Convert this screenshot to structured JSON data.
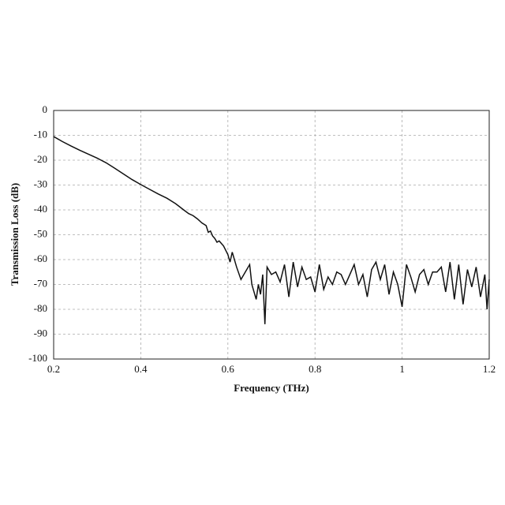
{
  "chart_data": {
    "type": "line",
    "x_label": "Frequency (THz)",
    "y_label": "Transmission Loss (dB)",
    "xlim": [
      0.2,
      1.2
    ],
    "xticks": [
      0.2,
      0.4,
      0.6,
      0.8,
      1,
      1.2
    ],
    "ylim": [
      -100,
      0
    ],
    "yticks": [
      0,
      -10,
      -20,
      -30,
      -40,
      -50,
      -60,
      -70,
      -80,
      -90,
      -100
    ],
    "grid": true,
    "color": "#111111",
    "x": [
      0.2,
      0.22,
      0.24,
      0.26,
      0.28,
      0.3,
      0.32,
      0.34,
      0.36,
      0.38,
      0.4,
      0.42,
      0.44,
      0.46,
      0.48,
      0.5,
      0.51,
      0.52,
      0.53,
      0.54,
      0.55,
      0.555,
      0.56,
      0.565,
      0.57,
      0.575,
      0.58,
      0.59,
      0.6,
      0.605,
      0.61,
      0.62,
      0.63,
      0.64,
      0.65,
      0.655,
      0.66,
      0.665,
      0.67,
      0.675,
      0.68,
      0.685,
      0.69,
      0.7,
      0.71,
      0.72,
      0.73,
      0.74,
      0.75,
      0.76,
      0.77,
      0.78,
      0.79,
      0.8,
      0.81,
      0.82,
      0.83,
      0.84,
      0.85,
      0.86,
      0.87,
      0.88,
      0.89,
      0.9,
      0.91,
      0.92,
      0.93,
      0.94,
      0.95,
      0.96,
      0.97,
      0.98,
      0.99,
      1.0,
      1.01,
      1.02,
      1.03,
      1.04,
      1.05,
      1.06,
      1.07,
      1.08,
      1.09,
      1.1,
      1.11,
      1.12,
      1.13,
      1.14,
      1.15,
      1.16,
      1.17,
      1.18,
      1.19,
      1.195,
      1.2
    ],
    "values": [
      -10.5,
      -12.5,
      -14.3,
      -16,
      -17.6,
      -19.2,
      -21,
      -23.2,
      -25.5,
      -27.8,
      -29.8,
      -31.7,
      -33.6,
      -35.3,
      -37.5,
      -40.2,
      -41.5,
      -42.3,
      -43.6,
      -45.2,
      -46.3,
      -49,
      -48.5,
      -50.5,
      -51.5,
      -53,
      -52.5,
      -54.5,
      -58,
      -61,
      -57,
      -63,
      -68,
      -65,
      -62,
      -70,
      -73,
      -76,
      -70,
      -74,
      -66,
      -86,
      -63,
      -66,
      -65,
      -69,
      -62,
      -75,
      -61,
      -71,
      -63,
      -68,
      -67,
      -73,
      -62,
      -72,
      -67,
      -70,
      -65,
      -66,
      -70,
      -66,
      -62,
      -70,
      -66,
      -75,
      -64,
      -61,
      -68,
      -62,
      -74,
      -65,
      -70,
      -79,
      -62,
      -67,
      -73,
      -66,
      -64,
      -70,
      -65,
      -65,
      -63,
      -73,
      -61,
      -76,
      -62,
      -78,
      -64,
      -71,
      -63,
      -75,
      -66,
      -80,
      -68
    ]
  }
}
